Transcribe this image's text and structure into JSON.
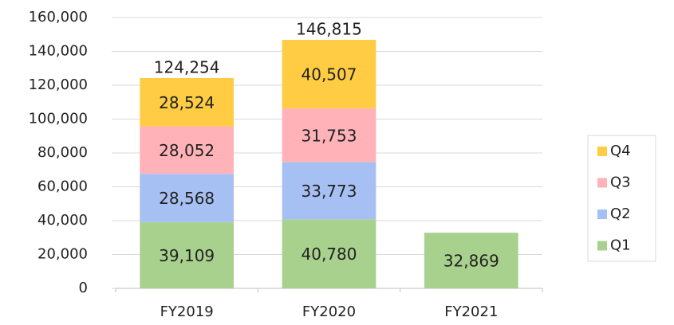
{
  "chart_data": {
    "type": "stacked_bar",
    "categories": [
      "FY2019",
      "FY2020",
      "FY2021"
    ],
    "series": [
      {
        "name": "Q1",
        "color": "#a9d18e",
        "values": [
          39109,
          40780,
          32869
        ],
        "value_labels": [
          "39,109",
          "40,780",
          "32,869"
        ]
      },
      {
        "name": "Q2",
        "color": "#a7c0f3",
        "values": [
          28568,
          33773,
          null
        ],
        "value_labels": [
          "28,568",
          "33,773",
          null
        ]
      },
      {
        "name": "Q3",
        "color": "#ffb3b8",
        "values": [
          28052,
          31753,
          null
        ],
        "value_labels": [
          "28,052",
          "31,753",
          null
        ]
      },
      {
        "name": "Q4",
        "color": "#ffcc44",
        "values": [
          28524,
          40507,
          null
        ],
        "value_labels": [
          "28,524",
          "40,507",
          null
        ]
      }
    ],
    "totals": [
      124254,
      146815,
      null
    ],
    "total_labels": [
      "124,254",
      "146,815",
      null
    ],
    "ylim": [
      0,
      160000
    ],
    "yticks": [
      0,
      {
        "value": 20000,
        "label": "20,000"
      },
      {
        "value": 40000,
        "label": "40,000"
      },
      {
        "value": 60000,
        "label": "60,000"
      },
      {
        "value": 80000,
        "label": "80,000"
      },
      {
        "value": 100000,
        "label": "100,000"
      },
      {
        "value": 120000,
        "label": "120,000"
      },
      {
        "value": 140000,
        "label": "140,000"
      },
      {
        "value": 160000,
        "label": "160,000"
      }
    ],
    "grid": true,
    "legend": "right"
  }
}
